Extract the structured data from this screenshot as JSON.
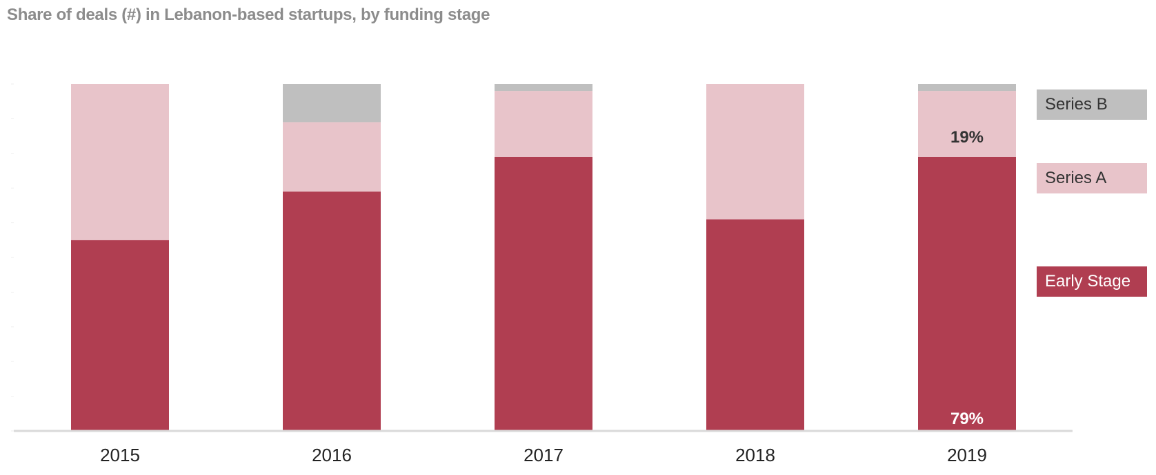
{
  "title": "Share of deals (#) in Lebanon-based startups, by funding stage",
  "colors": {
    "early_stage": "#b03e51",
    "series_a": "#e8c4ca",
    "series_b": "#bfbfbf",
    "axis": "#d9d9d9",
    "title": "#8c8c8c"
  },
  "legend": {
    "series_b": "Series B",
    "series_a": "Series A",
    "early_stage": "Early Stage"
  },
  "chart_data": {
    "type": "bar",
    "stacked": true,
    "title": "Share of deals (#) in Lebanon-based startups, by funding stage",
    "xlabel": "",
    "ylabel": "",
    "ylim": [
      0,
      100
    ],
    "categories": [
      "2015",
      "2016",
      "2017",
      "2018",
      "2019"
    ],
    "series": [
      {
        "name": "Early Stage",
        "color": "#b03e51",
        "values": [
          55,
          69,
          79,
          61,
          79
        ]
      },
      {
        "name": "Series A",
        "color": "#e8c4ca",
        "values": [
          45,
          20,
          19,
          39,
          19
        ]
      },
      {
        "name": "Series B",
        "color": "#bfbfbf",
        "values": [
          0,
          11,
          2,
          0,
          2
        ]
      }
    ],
    "data_labels": [
      {
        "category": "2019",
        "series": "Series A",
        "text": "19%"
      },
      {
        "category": "2019",
        "series": "Early Stage",
        "text": "79%"
      }
    ],
    "legend_position": "right",
    "grid": false
  }
}
